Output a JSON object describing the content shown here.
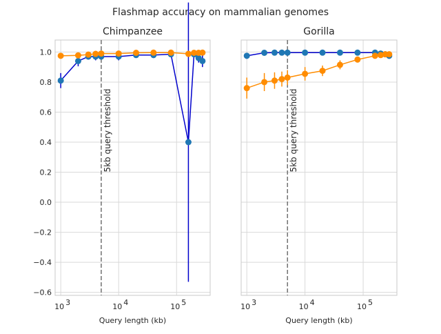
{
  "figure": {
    "title": "Flashmap accuracy on mammalian genomes"
  },
  "colors": {
    "blue_line": "#0000cc",
    "blue_marker": "#1f77b4",
    "orange": "#ff8c00",
    "grid": "#d9d9d9",
    "spine": "#c8c8c8",
    "threshold": "#707070"
  },
  "chart_data": [
    {
      "type": "line",
      "title": "Chimpanzee",
      "xlabel": "Query length (kb)",
      "ylabel": "",
      "xscale": "log",
      "xlim": [
        800,
        380000
      ],
      "ylim": [
        -0.62,
        1.08
      ],
      "xticks": [
        1000,
        10000,
        100000
      ],
      "xtick_labels": [
        {
          "base": "10",
          "exp": "3"
        },
        {
          "base": "10",
          "exp": "4"
        },
        {
          "base": "10",
          "exp": "5"
        }
      ],
      "yticks": [
        -0.6,
        -0.4,
        -0.2,
        0.0,
        0.2,
        0.4,
        0.6,
        0.8,
        1.0
      ],
      "ytick_labels": [
        "−0.6",
        "−0.4",
        "−0.2",
        "0.0",
        "0.2",
        "0.4",
        "0.6",
        "0.8",
        "1.0"
      ],
      "grid": true,
      "vline": {
        "x": 5000,
        "label": "5kb query threshold"
      },
      "series": [
        {
          "color_key": "blue",
          "points": [
            {
              "x": 1000,
              "y": 0.81,
              "err": 0.05
            },
            {
              "x": 2000,
              "y": 0.94,
              "err": 0.035
            },
            {
              "x": 3000,
              "y": 0.97,
              "err": 0.02
            },
            {
              "x": 4000,
              "y": 0.97,
              "err": 0.025
            },
            {
              "x": 5000,
              "y": 0.97,
              "err": 0.02
            },
            {
              "x": 10000,
              "y": 0.97,
              "err": 0.025
            },
            {
              "x": 20000,
              "y": 0.98,
              "err": 0.015
            },
            {
              "x": 40000,
              "y": 0.98,
              "err": 0.02
            },
            {
              "x": 80000,
              "y": 0.985,
              "err": 0.01
            },
            {
              "x": 160000,
              "y": 0.4,
              "err": 0.93
            },
            {
              "x": 200000,
              "y": 0.985,
              "err": 0.015
            },
            {
              "x": 240000,
              "y": 0.96,
              "err": 0.03
            },
            {
              "x": 280000,
              "y": 0.94,
              "err": 0.04
            }
          ]
        },
        {
          "color_key": "orange",
          "points": [
            {
              "x": 1000,
              "y": 0.975,
              "err": 0.01
            },
            {
              "x": 2000,
              "y": 0.978,
              "err": 0.008
            },
            {
              "x": 3000,
              "y": 0.983,
              "err": 0.006
            },
            {
              "x": 4000,
              "y": 0.988,
              "err": 0.005
            },
            {
              "x": 5000,
              "y": 0.99,
              "err": 0.005
            },
            {
              "x": 10000,
              "y": 0.99,
              "err": 0.004
            },
            {
              "x": 20000,
              "y": 0.995,
              "err": 0.004
            },
            {
              "x": 40000,
              "y": 0.996,
              "err": 0.003
            },
            {
              "x": 80000,
              "y": 0.996,
              "err": 0.003
            },
            {
              "x": 160000,
              "y": 0.988,
              "err": 0.005
            },
            {
              "x": 200000,
              "y": 0.995,
              "err": 0.003
            },
            {
              "x": 240000,
              "y": 0.995,
              "err": 0.003
            },
            {
              "x": 280000,
              "y": 0.996,
              "err": 0.003
            }
          ]
        }
      ]
    },
    {
      "type": "line",
      "title": "Gorilla",
      "xlabel": "Query length (kb)",
      "ylabel": "",
      "xscale": "log",
      "xlim": [
        800,
        380000
      ],
      "ylim": [
        -0.62,
        1.08
      ],
      "xticks": [
        1000,
        10000,
        100000
      ],
      "xtick_labels": [
        {
          "base": "10",
          "exp": "3"
        },
        {
          "base": "10",
          "exp": "4"
        },
        {
          "base": "10",
          "exp": "5"
        }
      ],
      "yticks": [
        -0.6,
        -0.4,
        -0.2,
        0.0,
        0.2,
        0.4,
        0.6,
        0.8,
        1.0
      ],
      "ytick_labels": [],
      "grid": true,
      "vline": {
        "x": 5000,
        "label": "5kb query threshold"
      },
      "series": [
        {
          "color_key": "blue",
          "points": [
            {
              "x": 1000,
              "y": 0.975,
              "err": 0.02
            },
            {
              "x": 2000,
              "y": 0.995,
              "err": 0.008
            },
            {
              "x": 3000,
              "y": 0.996,
              "err": 0.006
            },
            {
              "x": 4000,
              "y": 0.996,
              "err": 0.005
            },
            {
              "x": 5000,
              "y": 0.996,
              "err": 0.005
            },
            {
              "x": 10000,
              "y": 0.996,
              "err": 0.004
            },
            {
              "x": 20000,
              "y": 0.996,
              "err": 0.004
            },
            {
              "x": 40000,
              "y": 0.996,
              "err": 0.004
            },
            {
              "x": 80000,
              "y": 0.996,
              "err": 0.004
            },
            {
              "x": 160000,
              "y": 0.996,
              "err": 0.005
            },
            {
              "x": 200000,
              "y": 0.99,
              "err": 0.006
            },
            {
              "x": 240000,
              "y": 0.985,
              "err": 0.01
            },
            {
              "x": 280000,
              "y": 0.975,
              "err": 0.02
            }
          ]
        },
        {
          "color_key": "orange",
          "points": [
            {
              "x": 1000,
              "y": 0.76,
              "err": 0.07
            },
            {
              "x": 2000,
              "y": 0.8,
              "err": 0.06
            },
            {
              "x": 3000,
              "y": 0.81,
              "err": 0.055
            },
            {
              "x": 4000,
              "y": 0.82,
              "err": 0.05
            },
            {
              "x": 5000,
              "y": 0.83,
              "err": 0.05
            },
            {
              "x": 10000,
              "y": 0.855,
              "err": 0.045
            },
            {
              "x": 20000,
              "y": 0.875,
              "err": 0.035
            },
            {
              "x": 40000,
              "y": 0.915,
              "err": 0.03
            },
            {
              "x": 80000,
              "y": 0.95,
              "err": 0.02
            },
            {
              "x": 160000,
              "y": 0.975,
              "err": 0.015
            },
            {
              "x": 200000,
              "y": 0.98,
              "err": 0.012
            },
            {
              "x": 240000,
              "y": 0.985,
              "err": 0.01
            },
            {
              "x": 280000,
              "y": 0.985,
              "err": 0.01
            }
          ]
        }
      ]
    }
  ]
}
